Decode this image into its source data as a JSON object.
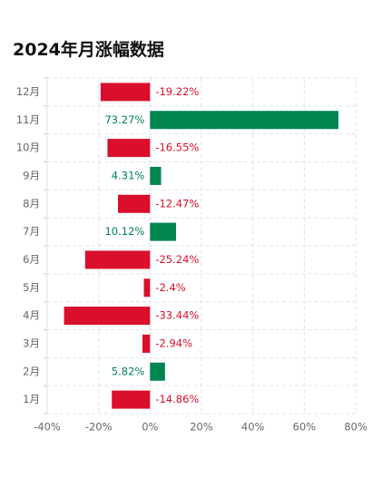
{
  "chart_data": {
    "type": "bar",
    "orientation": "horizontal",
    "title": "2024年月涨幅数据",
    "categories": [
      "12月",
      "11月",
      "10月",
      "9月",
      "8月",
      "7月",
      "6月",
      "5月",
      "4月",
      "3月",
      "2月",
      "1月"
    ],
    "values": [
      -19.22,
      73.27,
      -16.55,
      4.31,
      -12.47,
      10.12,
      -25.24,
      -2.4,
      -33.44,
      -2.94,
      5.82,
      -14.86
    ],
    "value_labels": [
      "-19.22%",
      "73.27%",
      "-16.55%",
      "4.31%",
      "-12.47%",
      "10.12%",
      "-25.24%",
      "-2.4%",
      "-33.44%",
      "-2.94%",
      "5.82%",
      "-14.86%"
    ],
    "xlim": [
      -40,
      80
    ],
    "xticks": [
      "-40%",
      "-20%",
      "0%",
      "20%",
      "40%",
      "60%",
      "80%"
    ],
    "grid": true,
    "colors": {
      "positive": "#008450",
      "negative": "#d90f2d"
    }
  }
}
